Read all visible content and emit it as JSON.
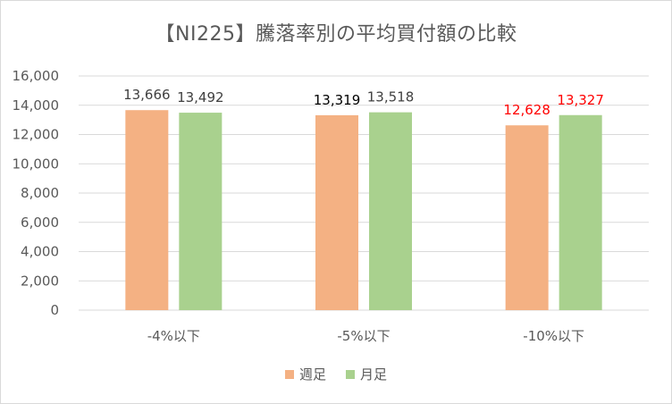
{
  "chart_data": {
    "type": "bar",
    "title": "【NI225】騰落率別の平均買付額の比較",
    "categories": [
      "-4%以下",
      "-5%以下",
      "-10%以下"
    ],
    "series": [
      {
        "name": "週足",
        "color": "#f4b183",
        "values": [
          13666,
          13319,
          12628
        ],
        "labels": [
          "13,666",
          "13,319",
          "12,628"
        ],
        "label_colors": [
          "#404040",
          "#000000",
          "#ff0000"
        ]
      },
      {
        "name": "月足",
        "color": "#a9d18e",
        "values": [
          13492,
          13518,
          13327
        ],
        "labels": [
          "13,492",
          "13,518",
          "13,327"
        ],
        "label_colors": [
          "#404040",
          "#404040",
          "#ff0000"
        ]
      }
    ],
    "ylim": [
      0,
      16000
    ],
    "yticks": [
      0,
      2000,
      4000,
      6000,
      8000,
      10000,
      12000,
      14000,
      16000
    ],
    "ytick_labels": [
      "0",
      "2,000",
      "4,000",
      "6,000",
      "8,000",
      "10,000",
      "12,000",
      "14,000",
      "16,000"
    ],
    "grid": "horizontal",
    "gridline_color": "#d9d9d9",
    "legend_position": "bottom"
  }
}
